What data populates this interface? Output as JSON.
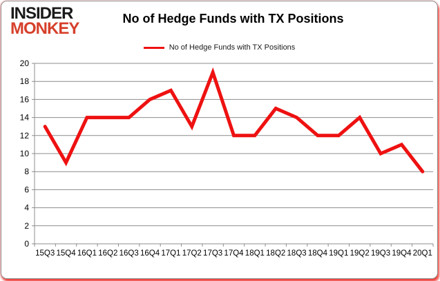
{
  "logo": {
    "line1": "INSIDER",
    "line2": "MONKEY",
    "line1_color": "#1a1a1a",
    "line2_color": "#d6402b"
  },
  "header": {
    "title": "No of Hedge Funds with TX Positions"
  },
  "legend": {
    "label": "No of Hedge Funds with TX Positions",
    "swatch_color": "#ee1111",
    "position": "top"
  },
  "chart_data": {
    "type": "line",
    "title": "No of Hedge Funds with TX Positions",
    "categories": [
      "15Q3",
      "15Q4",
      "16Q1",
      "16Q2",
      "16Q3",
      "16Q4",
      "17Q1",
      "17Q2",
      "17Q3",
      "17Q4",
      "18Q1",
      "18Q2",
      "18Q3",
      "18Q4",
      "19Q1",
      "19Q2",
      "19Q3",
      "19Q4",
      "20Q1"
    ],
    "series": [
      {
        "name": "No of Hedge Funds with TX Positions",
        "values": [
          13,
          9,
          14,
          14,
          14,
          16,
          17,
          13,
          19,
          12,
          12,
          15,
          14,
          12,
          12,
          14,
          10,
          11,
          8
        ]
      }
    ],
    "xlabel": "",
    "ylabel": "",
    "ylim": [
      0,
      20
    ],
    "yticks": [
      0,
      2,
      4,
      6,
      8,
      10,
      12,
      14,
      16,
      18,
      20
    ],
    "grid": true,
    "legend_position": "top",
    "line_color": "#ee1111",
    "grid_color": "#8c8c8c",
    "axis_label_color": "#000000"
  }
}
